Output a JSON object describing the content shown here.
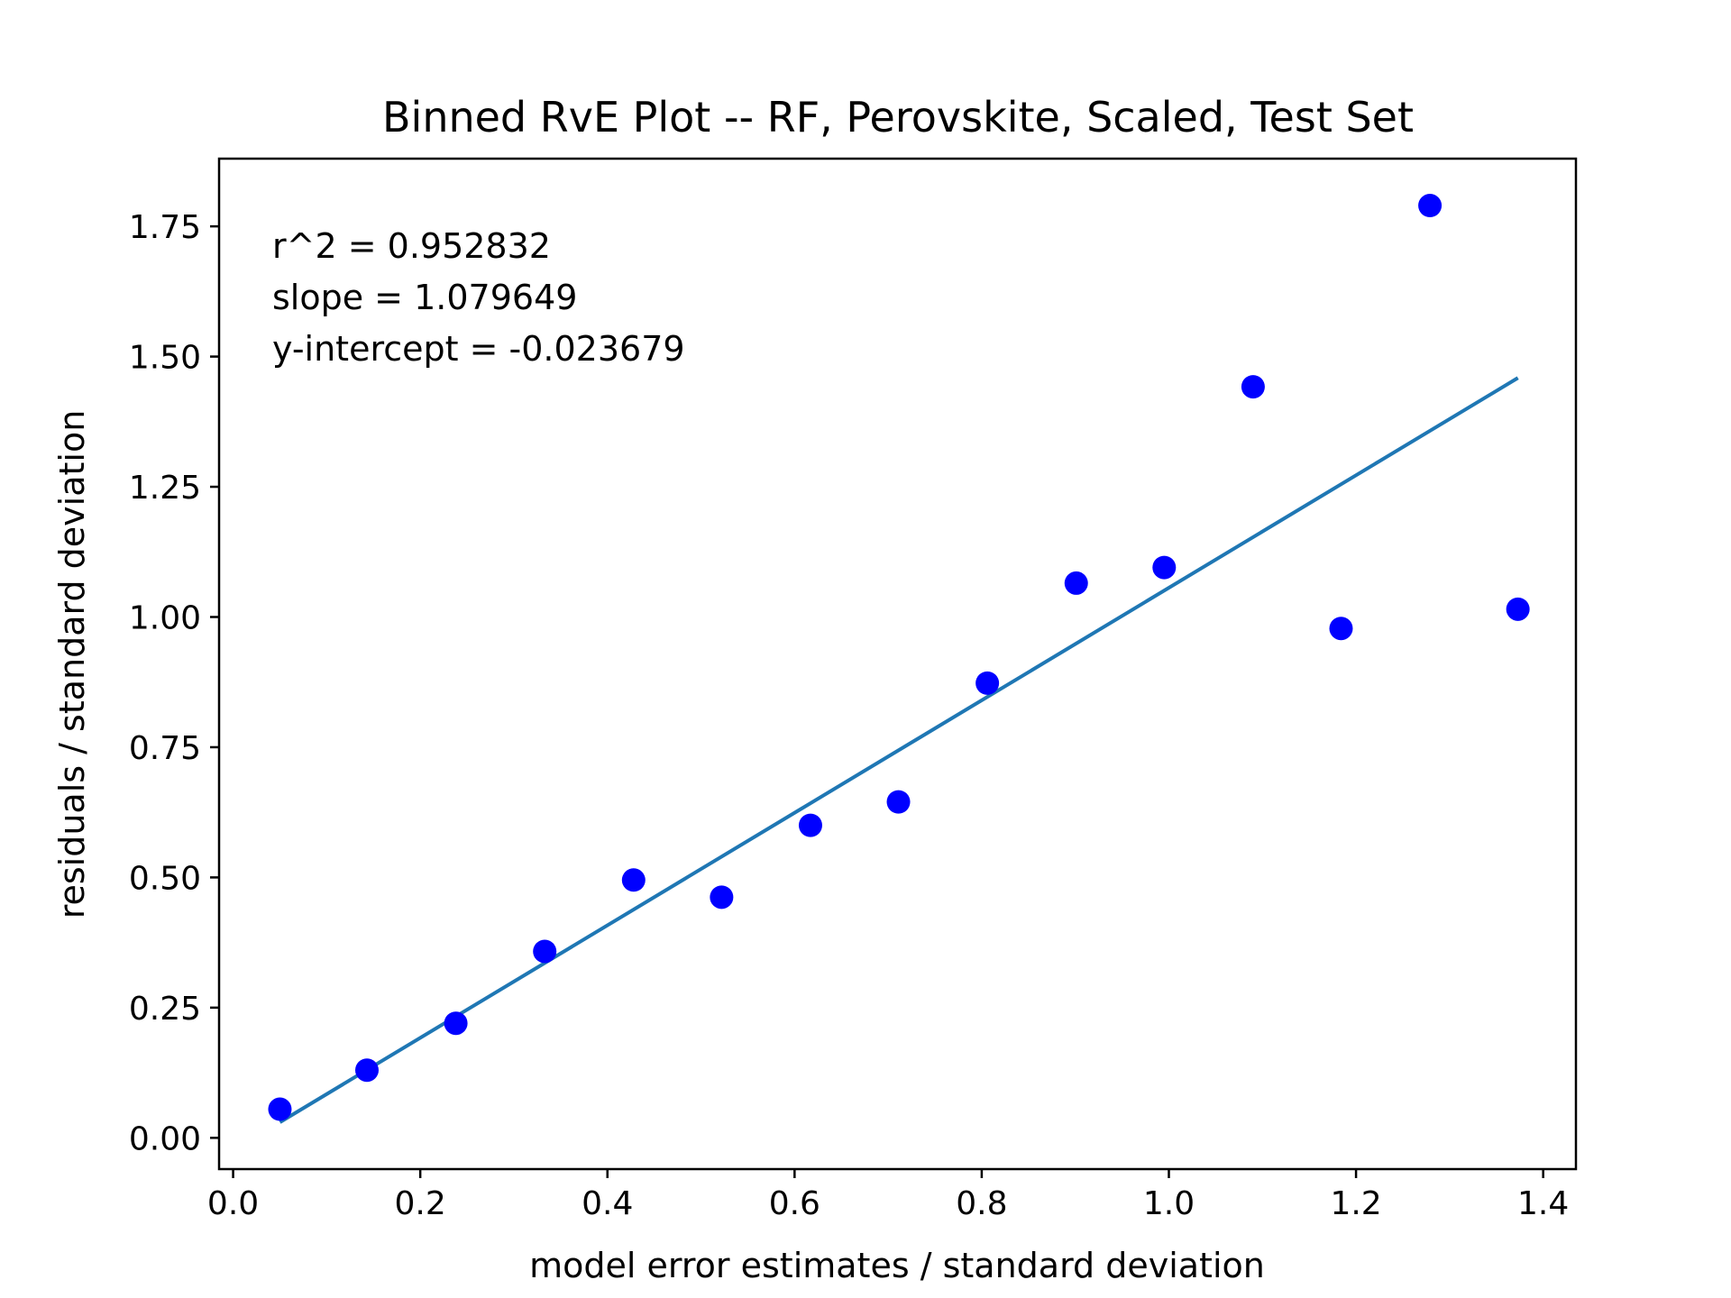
{
  "chart_data": {
    "type": "scatter",
    "title": "Binned RvE Plot -- RF, Perovskite, Scaled, Test Set",
    "xlabel": "model error estimates / standard deviation",
    "ylabel": "residuals / standard deviation",
    "xlim": [
      -0.015,
      1.435
    ],
    "ylim": [
      -0.06,
      1.88
    ],
    "xticks": [
      0.0,
      0.2,
      0.4,
      0.6,
      0.8,
      1.0,
      1.2,
      1.4
    ],
    "xtick_labels": [
      "0.0",
      "0.2",
      "0.4",
      "0.6",
      "0.8",
      "1.0",
      "1.2",
      "1.4"
    ],
    "yticks": [
      0.0,
      0.25,
      0.5,
      0.75,
      1.0,
      1.25,
      1.5,
      1.75
    ],
    "ytick_labels": [
      "0.00",
      "0.25",
      "0.50",
      "0.75",
      "1.00",
      "1.25",
      "1.50",
      "1.75"
    ],
    "grid": false,
    "series": [
      {
        "type": "scatter",
        "color": "#0000ff",
        "x": [
          0.05,
          0.143,
          0.238,
          0.333,
          0.428,
          0.522,
          0.617,
          0.711,
          0.806,
          0.901,
          0.995,
          1.09,
          1.184,
          1.279,
          1.373
        ],
        "y": [
          0.055,
          0.13,
          0.22,
          0.358,
          0.495,
          0.462,
          0.6,
          0.645,
          0.873,
          1.065,
          1.095,
          1.442,
          0.978,
          1.79,
          1.015
        ]
      },
      {
        "type": "line",
        "color": "#1f77b4",
        "x": [
          0.05,
          1.373
        ],
        "y": [
          0.03,
          1.459
        ]
      }
    ],
    "annotations": [
      "r^2 = 0.952832",
      "slope = 1.079649",
      "y-intercept = -0.023679"
    ]
  }
}
